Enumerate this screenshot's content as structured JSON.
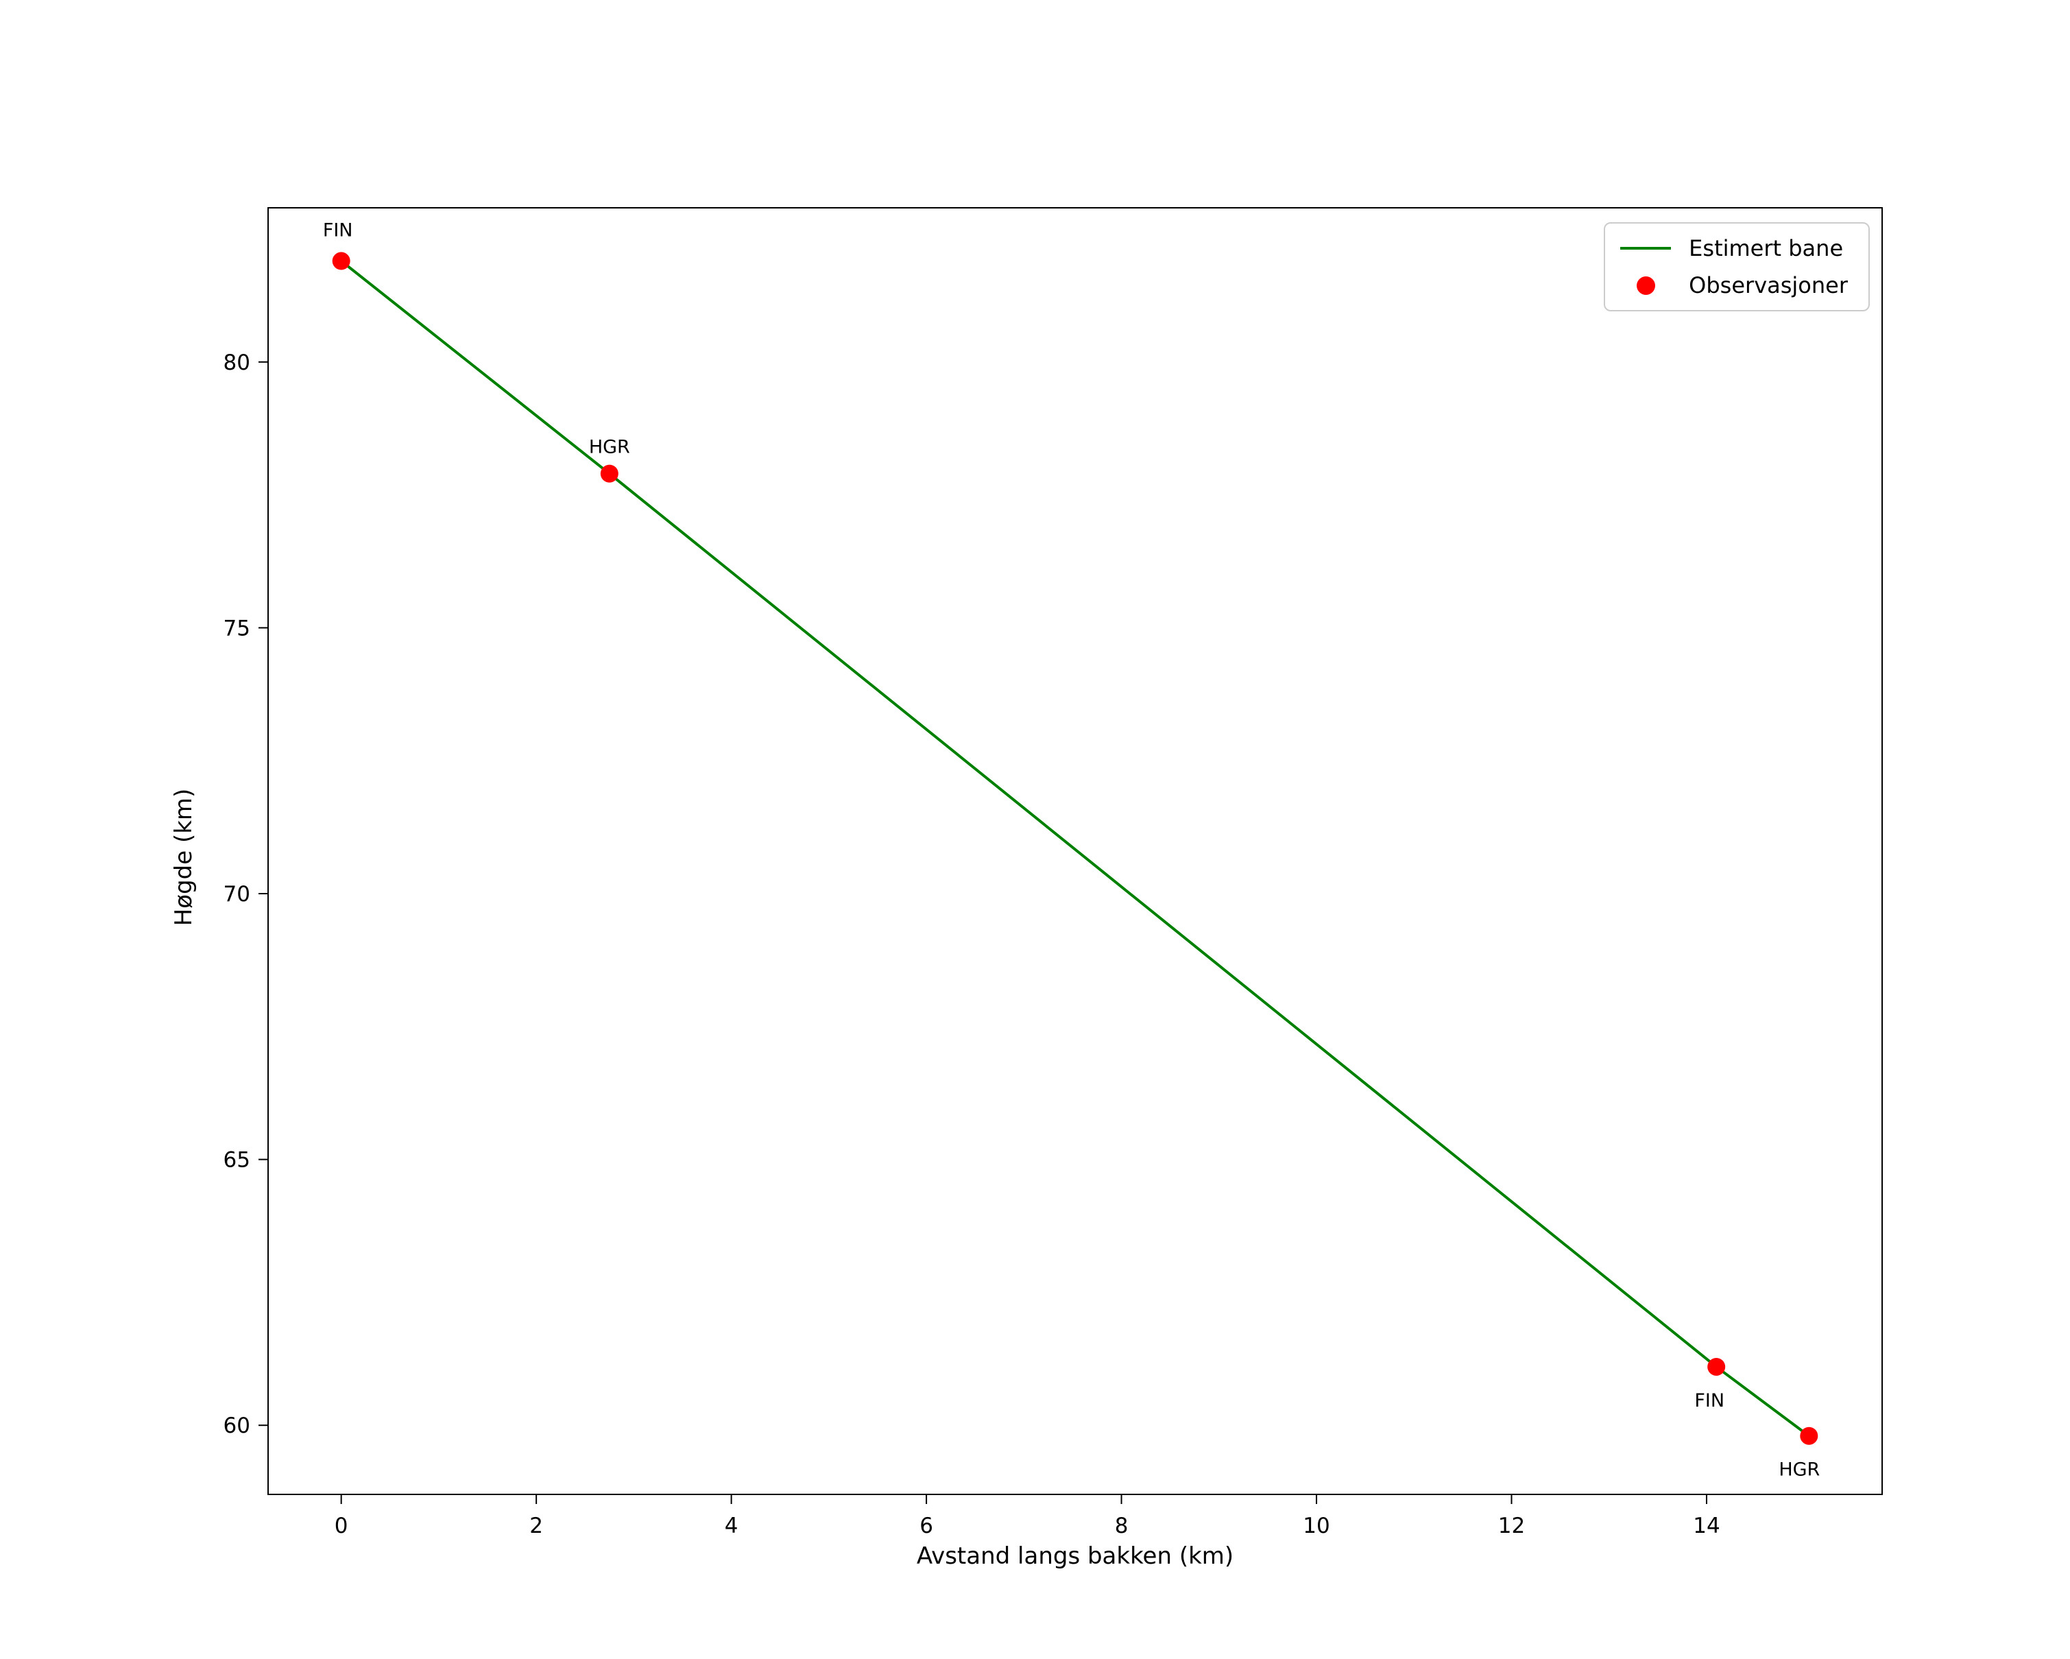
{
  "chart_data": {
    "type": "line",
    "title": "",
    "xlabel": "Avstand langs bakken (km)",
    "ylabel": "Høgde (km)",
    "xlim": [
      -0.75,
      15.8
    ],
    "ylim": [
      58.7,
      82.9
    ],
    "x_ticks": [
      0,
      2,
      4,
      6,
      8,
      10,
      12,
      14
    ],
    "y_ticks": [
      60,
      65,
      70,
      75,
      80
    ],
    "grid": false,
    "legend_position": "upper-right",
    "series": [
      {
        "name": "Estimert bane",
        "type": "line",
        "color": "#008000",
        "x": [
          0,
          2.75,
          14.1,
          15.05
        ],
        "y": [
          81.9,
          77.9,
          61.1,
          59.8
        ]
      },
      {
        "name": "Observasjoner",
        "type": "scatter",
        "color": "#ff0000",
        "marker_radius": 13,
        "points": [
          {
            "x": 0,
            "y": 81.9,
            "label": "FIN",
            "label_offset": [
              -5,
              -36
            ]
          },
          {
            "x": 2.75,
            "y": 77.9,
            "label": "HGR",
            "label_offset": [
              0,
              -30
            ]
          },
          {
            "x": 14.1,
            "y": 61.1,
            "label": "FIN",
            "label_offset": [
              -10,
              58
            ]
          },
          {
            "x": 15.05,
            "y": 59.8,
            "label": "HGR",
            "label_offset": [
              -14,
              58
            ]
          }
        ]
      }
    ]
  }
}
